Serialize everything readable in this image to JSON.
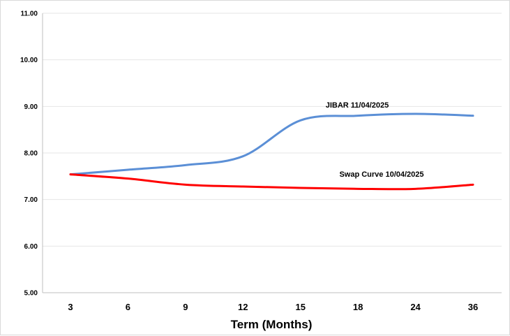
{
  "chart_data": {
    "type": "line",
    "title": "",
    "xlabel": "Term (Months)",
    "ylabel": "",
    "categories": [
      "3",
      "6",
      "9",
      "12",
      "15",
      "18",
      "24",
      "36"
    ],
    "ylim": [
      5.0,
      11.0
    ],
    "yticks": [
      "5.00",
      "6.00",
      "7.00",
      "8.00",
      "9.00",
      "10.00",
      "11.00"
    ],
    "grid": true,
    "series": [
      {
        "name": "JIBAR 11/04/2025",
        "color": "#5b8fd6",
        "values": [
          7.54,
          7.64,
          7.74,
          7.93,
          8.7,
          8.8,
          8.84,
          8.8
        ]
      },
      {
        "name": "Swap Curve  10/04/2025",
        "color": "#ff0000",
        "values": [
          7.54,
          7.45,
          7.32,
          7.28,
          7.25,
          7.23,
          7.23,
          7.32
        ]
      }
    ]
  }
}
